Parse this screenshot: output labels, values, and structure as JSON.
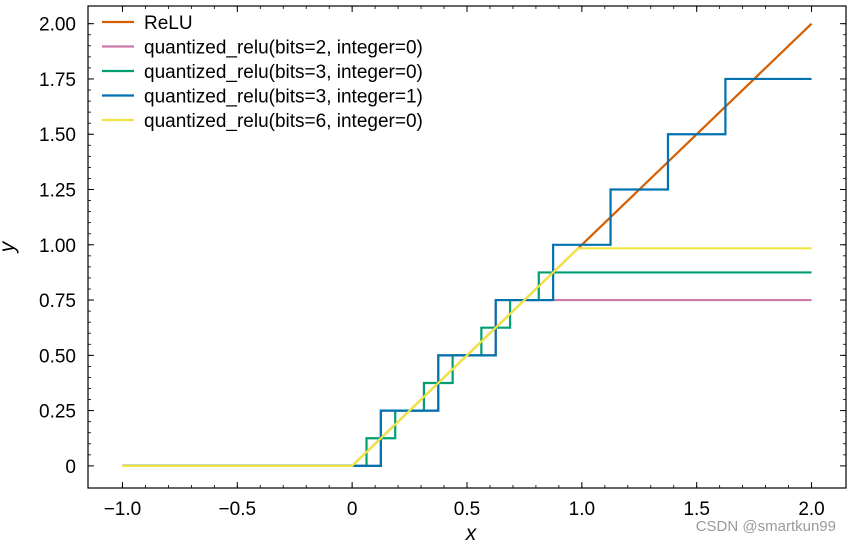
{
  "chart_data": {
    "type": "line",
    "xlabel": "x",
    "ylabel": "y",
    "xlim": [
      -1.15,
      2.15
    ],
    "ylim": [
      -0.1,
      2.08
    ],
    "xticks": [
      -1.0,
      -0.5,
      0,
      0.5,
      1.0,
      1.5,
      2.0
    ],
    "xtick_labels": [
      "−1.0",
      "−0.5",
      "0",
      "0.5",
      "1.0",
      "1.5",
      "2.0"
    ],
    "yticks": [
      0,
      0.25,
      0.5,
      0.75,
      1.0,
      1.25,
      1.5,
      1.75,
      2.0
    ],
    "ytick_labels": [
      "0",
      "0.25",
      "0.50",
      "0.75",
      "1.00",
      "1.25",
      "1.50",
      "1.75",
      "2.00"
    ],
    "grid": false,
    "legend_position": "top-left",
    "series": [
      {
        "name": "ReLU",
        "color": "#d55e00",
        "x": [
          -1.0,
          0,
          2.0
        ],
        "y": [
          0,
          0,
          2.0
        ]
      },
      {
        "name": "quantized_relu(bits=2, integer=0)",
        "color": "#cc79a7",
        "x": [
          -1.0,
          0,
          0.125,
          0.125,
          0.375,
          0.375,
          0.625,
          0.625,
          2.0
        ],
        "y": [
          0,
          0,
          0,
          0.25,
          0.25,
          0.5,
          0.5,
          0.75,
          0.75
        ]
      },
      {
        "name": "quantized_relu(bits=3, integer=0)",
        "color": "#009e73",
        "x": [
          -1.0,
          0.0625,
          0.0625,
          0.1875,
          0.1875,
          0.3125,
          0.3125,
          0.4375,
          0.4375,
          0.5625,
          0.5625,
          0.6875,
          0.6875,
          0.8125,
          0.8125,
          2.0
        ],
        "y": [
          0,
          0,
          0.125,
          0.125,
          0.25,
          0.25,
          0.375,
          0.375,
          0.5,
          0.5,
          0.625,
          0.625,
          0.75,
          0.75,
          0.875,
          0.875
        ]
      },
      {
        "name": "quantized_relu(bits=3, integer=1)",
        "color": "#0072b2",
        "x": [
          -1.0,
          0.125,
          0.125,
          0.375,
          0.375,
          0.625,
          0.625,
          0.875,
          0.875,
          1.125,
          1.125,
          1.375,
          1.375,
          1.625,
          1.625,
          2.0
        ],
        "y": [
          0,
          0,
          0.25,
          0.25,
          0.5,
          0.5,
          0.75,
          0.75,
          1.0,
          1.0,
          1.25,
          1.25,
          1.5,
          1.5,
          1.75,
          1.75
        ]
      },
      {
        "name": "quantized_relu(bits=6, integer=0)",
        "color": "#f0e442",
        "x": [
          -1.0,
          0,
          0.984,
          2.0
        ],
        "y": [
          0,
          0,
          0.984,
          0.984
        ]
      }
    ]
  },
  "watermark": "CSDN @smartkun99"
}
